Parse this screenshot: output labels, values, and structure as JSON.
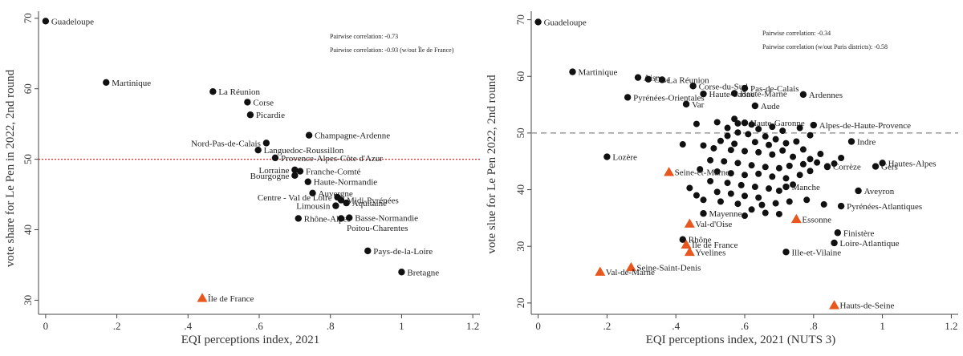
{
  "chart_data": [
    {
      "type": "scatter",
      "xlabel": "EQI perceptions index, 2021",
      "ylabel": "vote share for Le Pen in 2022, 2nd round",
      "xlim": [
        -0.02,
        1.22
      ],
      "ylim": [
        28,
        71
      ],
      "xticks": [
        "0",
        ".2",
        ".4",
        ".6",
        ".8",
        "1",
        "1.2"
      ],
      "xtick_values": [
        0,
        0.2,
        0.4,
        0.6,
        0.8,
        1.0,
        1.2
      ],
      "yticks": [
        30,
        40,
        50,
        60,
        70
      ],
      "reference_line": {
        "y": 50,
        "color": "#d62728",
        "style": "dotted"
      },
      "annotations": [
        "Pairwise correlation: -0.73",
        "Pairwise correlation: -0.93 (w/out Île de France)"
      ],
      "marker_colors": {
        "default": "#111111",
        "highlight": "#e8571e"
      },
      "points": [
        {
          "label": "Guadeloupe",
          "x": 0.0,
          "y": 69.6
        },
        {
          "label": "Martinique",
          "x": 0.17,
          "y": 60.9
        },
        {
          "label": "La Réunion",
          "x": 0.47,
          "y": 59.6
        },
        {
          "label": "Corse",
          "x": 0.567,
          "y": 58.1
        },
        {
          "label": "Picardie",
          "x": 0.575,
          "y": 56.3
        },
        {
          "label": "Champagne-Ardenne",
          "x": 0.74,
          "y": 53.4
        },
        {
          "label": "Nord-Pas-de-Calais",
          "x": 0.62,
          "y": 52.3,
          "anchor": "end"
        },
        {
          "label": "Languedoc-Roussillon",
          "x": 0.597,
          "y": 51.3
        },
        {
          "label": "Provence-Alpes-Côte d'Azur",
          "x": 0.645,
          "y": 50.2
        },
        {
          "label": "Lorraine",
          "x": 0.7,
          "y": 48.5,
          "anchor": "end"
        },
        {
          "label": "Franche-Comté",
          "x": 0.715,
          "y": 48.3
        },
        {
          "label": "Bourgogne",
          "x": 0.7,
          "y": 47.7,
          "anchor": "end"
        },
        {
          "label": "Haute-Normandie",
          "x": 0.737,
          "y": 46.8
        },
        {
          "label": "Auvergne",
          "x": 0.75,
          "y": 45.2
        },
        {
          "label": "Centre - Val de Loire",
          "x": 0.82,
          "y": 44.6,
          "anchor": "end"
        },
        {
          "label": "Midi-Pyrénées",
          "x": 0.83,
          "y": 44.2
        },
        {
          "label": "Aquitaine",
          "x": 0.845,
          "y": 43.8
        },
        {
          "label": "Limousin",
          "x": 0.815,
          "y": 43.4,
          "anchor": "end"
        },
        {
          "label": "Rhône-Alpes",
          "x": 0.71,
          "y": 41.6
        },
        {
          "label": "Basse-Normandie",
          "x": 0.853,
          "y": 41.7
        },
        {
          "label": "Poitou-Charentes",
          "x": 0.83,
          "y": 41.6,
          "label_dy": 1.3
        },
        {
          "label": "Pays-de-la-Loire",
          "x": 0.905,
          "y": 37.0
        },
        {
          "label": "Bretagne",
          "x": 1.0,
          "y": 34.0
        },
        {
          "label": "Île de France",
          "x": 0.44,
          "y": 30.3,
          "highlight": true
        }
      ]
    },
    {
      "type": "scatter",
      "xlabel": "EQI perceptions index, 2021 (NUTS 3)",
      "ylabel": "vote slue for Le Pen 2022, 2nd round",
      "xlim": [
        -0.02,
        1.22
      ],
      "ylim": [
        18,
        71.5
      ],
      "xticks": [
        "0",
        ".2",
        ".4",
        ".6",
        ".8",
        "1",
        "1.2"
      ],
      "xtick_values": [
        0,
        0.2,
        0.4,
        0.6,
        0.8,
        1.0,
        1.2
      ],
      "yticks": [
        20,
        30,
        40,
        50,
        60,
        70
      ],
      "reference_line": {
        "y": 50,
        "color": "#999999",
        "style": "dashed"
      },
      "annotations": [
        "Pairwise correlation: -0.34",
        "Pairwise correlation (w/out Paris districts): -0.58"
      ],
      "marker_colors": {
        "default": "#111111",
        "highlight": "#e8571e"
      },
      "points": [
        {
          "label": "Guadeloupe",
          "x": 0.0,
          "y": 69.6
        },
        {
          "label": "Martinique",
          "x": 0.1,
          "y": 60.8
        },
        {
          "label": "Aisne",
          "x": 0.29,
          "y": 59.8
        },
        {
          "label": "Oise",
          "x": 0.32,
          "y": 59.5
        },
        {
          "label": "La Réunion",
          "x": 0.36,
          "y": 59.4
        },
        {
          "label": "Corse-du-Sud",
          "x": 0.45,
          "y": 58.3
        },
        {
          "label": "Pas-de-Calais",
          "x": 0.6,
          "y": 57.9
        },
        {
          "label": "Haute-Saône",
          "x": 0.48,
          "y": 56.9
        },
        {
          "label": "Haute-Marne",
          "x": 0.57,
          "y": 57.0
        },
        {
          "label": "Ardennes",
          "x": 0.77,
          "y": 56.8
        },
        {
          "label": "Pyrénées-Orientales",
          "x": 0.26,
          "y": 56.3
        },
        {
          "label": "Var",
          "x": 0.43,
          "y": 55.1
        },
        {
          "label": "Aude",
          "x": 0.63,
          "y": 54.8
        },
        {
          "label": "Haute-Garonne",
          "x": 0.6,
          "y": 51.8
        },
        {
          "label": "Alpes-de-Haute-Provence",
          "x": 0.8,
          "y": 51.4
        },
        {
          "label": "Indre",
          "x": 0.91,
          "y": 48.5
        },
        {
          "label": "Hautes-Alpes",
          "x": 1.0,
          "y": 44.7
        },
        {
          "label": "Gers",
          "x": 0.98,
          "y": 44.1
        },
        {
          "label": "Lozère",
          "x": 0.2,
          "y": 45.8
        },
        {
          "label": "Seine-et-Marne",
          "x": 0.38,
          "y": 43.1,
          "highlight": true
        },
        {
          "label": "Corrèze",
          "x": 0.84,
          "y": 44.1
        },
        {
          "label": "Manche",
          "x": 0.72,
          "y": 40.5
        },
        {
          "label": "Aveyron",
          "x": 0.93,
          "y": 39.8
        },
        {
          "label": "Pyrénées-Atlantiques",
          "x": 0.88,
          "y": 37.1
        },
        {
          "label": "Mayenne",
          "x": 0.48,
          "y": 35.8
        },
        {
          "label": "Essonne",
          "x": 0.75,
          "y": 34.8,
          "highlight": true
        },
        {
          "label": "Val-d'Oise",
          "x": 0.44,
          "y": 34.0,
          "highlight": true
        },
        {
          "label": "Finistère",
          "x": 0.87,
          "y": 32.4
        },
        {
          "label": "Rhône",
          "x": 0.42,
          "y": 31.2
        },
        {
          "label": "Île de France",
          "x": 0.43,
          "y": 30.3,
          "highlight": true
        },
        {
          "label": "Loire-Atlantique",
          "x": 0.86,
          "y": 30.6
        },
        {
          "label": "Yvelines",
          "x": 0.44,
          "y": 29.0,
          "highlight": true
        },
        {
          "label": "Ille-et-Vilaine",
          "x": 0.72,
          "y": 29.0
        },
        {
          "label": "Seine-Saint-Denis",
          "x": 0.27,
          "y": 26.3,
          "highlight": true
        },
        {
          "label": "Val-de-Marne",
          "x": 0.18,
          "y": 25.5,
          "highlight": true
        },
        {
          "label": "Hauts-de-Seine",
          "x": 0.86,
          "y": 19.6,
          "highlight": true
        }
      ],
      "extra_points": [
        {
          "x": 0.57,
          "y": 52.5
        },
        {
          "x": 0.58,
          "y": 51.7
        },
        {
          "x": 0.52,
          "y": 51.9
        },
        {
          "x": 0.55,
          "y": 50.9
        },
        {
          "x": 0.62,
          "y": 51.5
        },
        {
          "x": 0.64,
          "y": 50.7
        },
        {
          "x": 0.58,
          "y": 50.1
        },
        {
          "x": 0.68,
          "y": 51.1
        },
        {
          "x": 0.71,
          "y": 50.4
        },
        {
          "x": 0.55,
          "y": 49.5
        },
        {
          "x": 0.61,
          "y": 49.8
        },
        {
          "x": 0.66,
          "y": 49.4
        },
        {
          "x": 0.69,
          "y": 48.9
        },
        {
          "x": 0.53,
          "y": 48.6
        },
        {
          "x": 0.57,
          "y": 48.1
        },
        {
          "x": 0.63,
          "y": 48.4
        },
        {
          "x": 0.67,
          "y": 47.9
        },
        {
          "x": 0.72,
          "y": 48.2
        },
        {
          "x": 0.75,
          "y": 48.5
        },
        {
          "x": 0.48,
          "y": 47.8
        },
        {
          "x": 0.51,
          "y": 47.3
        },
        {
          "x": 0.56,
          "y": 47.0
        },
        {
          "x": 0.6,
          "y": 46.8
        },
        {
          "x": 0.64,
          "y": 46.6
        },
        {
          "x": 0.68,
          "y": 46.2
        },
        {
          "x": 0.71,
          "y": 46.9
        },
        {
          "x": 0.77,
          "y": 47.1
        },
        {
          "x": 0.74,
          "y": 45.8
        },
        {
          "x": 0.79,
          "y": 45.4
        },
        {
          "x": 0.5,
          "y": 45.2
        },
        {
          "x": 0.54,
          "y": 45.0
        },
        {
          "x": 0.58,
          "y": 44.7
        },
        {
          "x": 0.62,
          "y": 44.3
        },
        {
          "x": 0.66,
          "y": 44.0
        },
        {
          "x": 0.7,
          "y": 43.8
        },
        {
          "x": 0.73,
          "y": 44.2
        },
        {
          "x": 0.77,
          "y": 44.5
        },
        {
          "x": 0.81,
          "y": 44.8
        },
        {
          "x": 0.47,
          "y": 43.6
        },
        {
          "x": 0.52,
          "y": 43.2
        },
        {
          "x": 0.56,
          "y": 42.9
        },
        {
          "x": 0.6,
          "y": 42.6
        },
        {
          "x": 0.64,
          "y": 42.8
        },
        {
          "x": 0.68,
          "y": 42.3
        },
        {
          "x": 0.72,
          "y": 42.0
        },
        {
          "x": 0.76,
          "y": 42.6
        },
        {
          "x": 0.79,
          "y": 43.3
        },
        {
          "x": 0.5,
          "y": 41.5
        },
        {
          "x": 0.55,
          "y": 41.2
        },
        {
          "x": 0.59,
          "y": 40.8
        },
        {
          "x": 0.63,
          "y": 40.5
        },
        {
          "x": 0.67,
          "y": 40.2
        },
        {
          "x": 0.7,
          "y": 39.8
        },
        {
          "x": 0.74,
          "y": 40.9
        },
        {
          "x": 0.52,
          "y": 39.6
        },
        {
          "x": 0.56,
          "y": 39.3
        },
        {
          "x": 0.6,
          "y": 38.9
        },
        {
          "x": 0.64,
          "y": 38.6
        },
        {
          "x": 0.48,
          "y": 38.2
        },
        {
          "x": 0.53,
          "y": 37.9
        },
        {
          "x": 0.58,
          "y": 37.5
        },
        {
          "x": 0.65,
          "y": 37.3
        },
        {
          "x": 0.69,
          "y": 37.6
        },
        {
          "x": 0.73,
          "y": 37.9
        },
        {
          "x": 0.78,
          "y": 38.2
        },
        {
          "x": 0.83,
          "y": 37.4
        },
        {
          "x": 0.62,
          "y": 36.5
        },
        {
          "x": 0.66,
          "y": 35.9
        },
        {
          "x": 0.7,
          "y": 35.7
        },
        {
          "x": 0.6,
          "y": 35.4
        },
        {
          "x": 0.44,
          "y": 40.3
        },
        {
          "x": 0.46,
          "y": 39.0
        },
        {
          "x": 0.84,
          "y": 44.0
        },
        {
          "x": 0.86,
          "y": 44.6
        },
        {
          "x": 0.88,
          "y": 45.6
        },
        {
          "x": 0.82,
          "y": 46.3
        },
        {
          "x": 0.79,
          "y": 49.6
        },
        {
          "x": 0.76,
          "y": 50.9
        },
        {
          "x": 0.46,
          "y": 51.6
        },
        {
          "x": 0.42,
          "y": 48.0
        }
      ]
    }
  ]
}
